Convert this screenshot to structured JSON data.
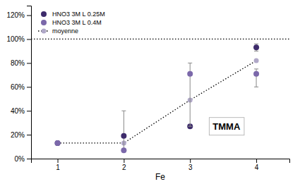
{
  "chart_data": {
    "type": "scatter",
    "x_label": "Fe",
    "x": [
      1,
      2,
      3,
      4
    ],
    "xlim": [
      0.6,
      4.5
    ],
    "xticks": [
      1,
      2,
      3,
      4
    ],
    "ylim": [
      0.0,
      1.28
    ],
    "yticks": [
      {
        "value": 0.0,
        "label": "0%"
      },
      {
        "value": 0.2,
        "label": "20%"
      },
      {
        "value": 0.4,
        "label": "40%"
      },
      {
        "value": 0.6,
        "label": "60%"
      },
      {
        "value": 0.8,
        "label": "80%"
      },
      {
        "value": 1.0,
        "label": "100%"
      },
      {
        "value": 1.2,
        "label": "120%"
      }
    ],
    "grid": false,
    "legend": "upper left",
    "series": [
      {
        "name": "HNO3 3M L 0.25M",
        "color": "#3d2b6b",
        "marker": "circle",
        "values": [
          0.13,
          0.19,
          0.27,
          0.93
        ],
        "error_lo": [
          0.0,
          0.12,
          0.0,
          0.03
        ],
        "error_hi": [
          0.0,
          0.21,
          0.0,
          0.03
        ]
      },
      {
        "name": "HNO3 3M L 0.4M",
        "color": "#7b68aa",
        "marker": "circle",
        "values": [
          0.13,
          0.07,
          0.71,
          0.71
        ],
        "error_lo": [
          0.0,
          0.0,
          0.44,
          0.11
        ],
        "error_hi": [
          0.0,
          0.0,
          0.09,
          0.04
        ]
      },
      {
        "name": "moyenne",
        "type": "line",
        "line_style": "dotted",
        "marker": "circle",
        "color": "#b0a8c8",
        "values": [
          0.13,
          0.13,
          0.49,
          0.82
        ]
      }
    ],
    "hlines": [
      1.0
    ],
    "annotations": [
      {
        "text": "TMMA",
        "x": 3.55,
        "y": 0.27
      }
    ]
  }
}
